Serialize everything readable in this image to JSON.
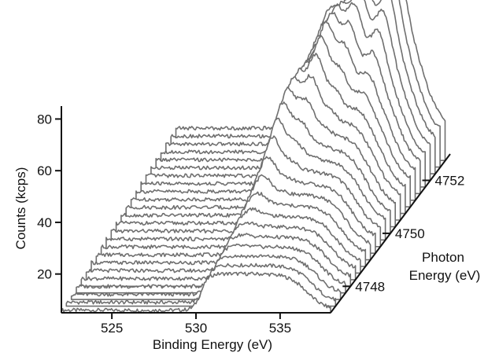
{
  "chart_data": {
    "type": "line",
    "style": "waterfall-3d",
    "trace_color": "#6f6f6f",
    "x_axis": {
      "label": "Binding Energy (eV)",
      "range": [
        522,
        538
      ],
      "ticks": [
        525,
        530,
        535
      ]
    },
    "y_axis": {
      "label": "Counts (kcps)",
      "range": [
        5,
        85
      ],
      "ticks": [
        20,
        40,
        60,
        80
      ]
    },
    "z_axis": {
      "label_line1": "Photon",
      "label_line2": "Energy (eV)",
      "range": [
        4747,
        4753
      ],
      "ticks": [
        4748,
        4750,
        4752
      ]
    },
    "series_photon_energies": [
      4747.0,
      4747.25,
      4747.5,
      4747.75,
      4748.0,
      4748.25,
      4748.5,
      4748.75,
      4749.0,
      4749.25,
      4749.5,
      4749.75,
      4750.0,
      4750.25,
      4750.5,
      4750.75,
      4751.0,
      4751.25,
      4751.5,
      4751.75,
      4752.0,
      4752.25,
      4752.5,
      4752.75
    ],
    "series_background_counts": [
      6,
      6.5,
      7,
      7.5,
      8,
      8.5,
      9,
      9.5,
      10,
      10.5,
      11,
      11.5,
      12,
      12.5,
      13,
      13.5,
      14,
      14.5,
      15,
      15.5,
      16,
      16.5,
      17,
      17.5
    ],
    "main_peak": {
      "binding_energy": 530.3,
      "max_height": 47
    },
    "resonant_peaks": [
      {
        "binding_energy": 531.6,
        "peak_photon_energy": 4750.2,
        "max_height": 18
      },
      {
        "binding_energy": 532.7,
        "peak_photon_energy": 4751.2,
        "max_height": 24
      },
      {
        "binding_energy": 533.8,
        "peak_photon_energy": 4752.0,
        "max_height": 22
      },
      {
        "binding_energy": 535.2,
        "peak_photon_energy": 4752.5,
        "max_height": 20
      }
    ]
  }
}
